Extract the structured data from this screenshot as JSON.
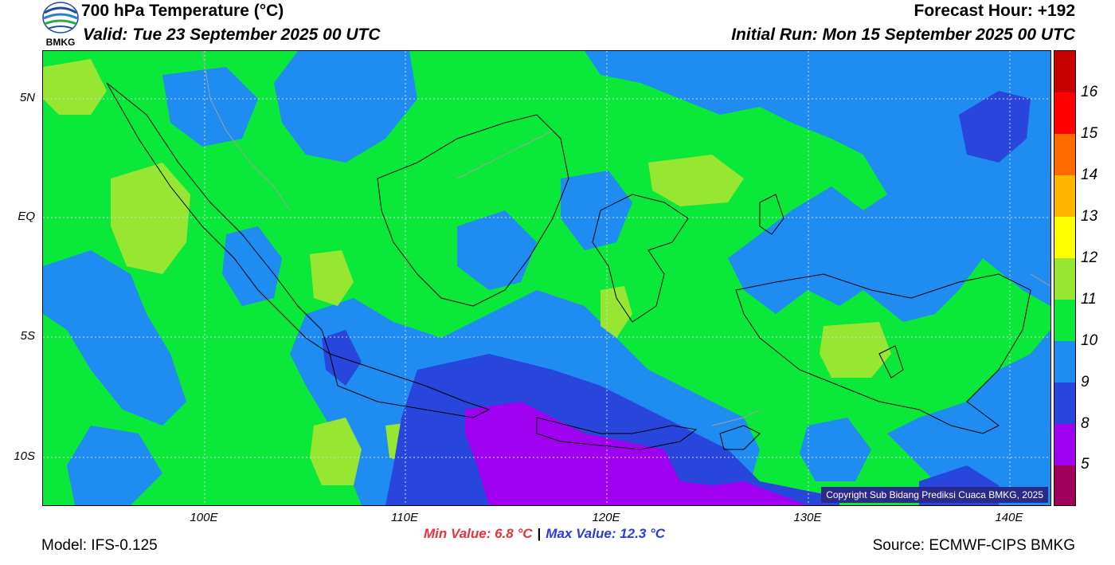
{
  "header": {
    "title": "700 hPa Temperature (°C)",
    "valid": "Valid: Tue 23 September 2025 00 UTC",
    "forecast_hour": "Forecast Hour: +192",
    "initial_run": "Initial Run: Mon 15 September 2025 00 UTC",
    "logo_text": "BMKG"
  },
  "map": {
    "lat_labels": [
      "5N",
      "EQ",
      "5S",
      "10S"
    ],
    "lon_labels": [
      "100E",
      "110E",
      "120E",
      "130E",
      "140E"
    ],
    "background_color": "#0ae83a",
    "copyright": "Copyright Sub Bidang Prediksi Cuaca BMKG, 2025"
  },
  "colorbar": {
    "labels": [
      "16",
      "15",
      "14",
      "13",
      "12",
      "11",
      "10",
      "9",
      "8",
      "5"
    ],
    "colors": [
      "#c80000",
      "#ff0000",
      "#ff6a00",
      "#ffb400",
      "#ffff00",
      "#96e632",
      "#0ae83a",
      "#1e8cf0",
      "#2846dc",
      "#a000f0",
      "#a0005a"
    ]
  },
  "footer": {
    "model": "Model: IFS-0.125",
    "min_value": "Min Value: 6.8 °C",
    "separator": "|",
    "max_value": "Max Value: 12.3 °C",
    "source": "Source: ECMWF-CIPS BMKG"
  }
}
